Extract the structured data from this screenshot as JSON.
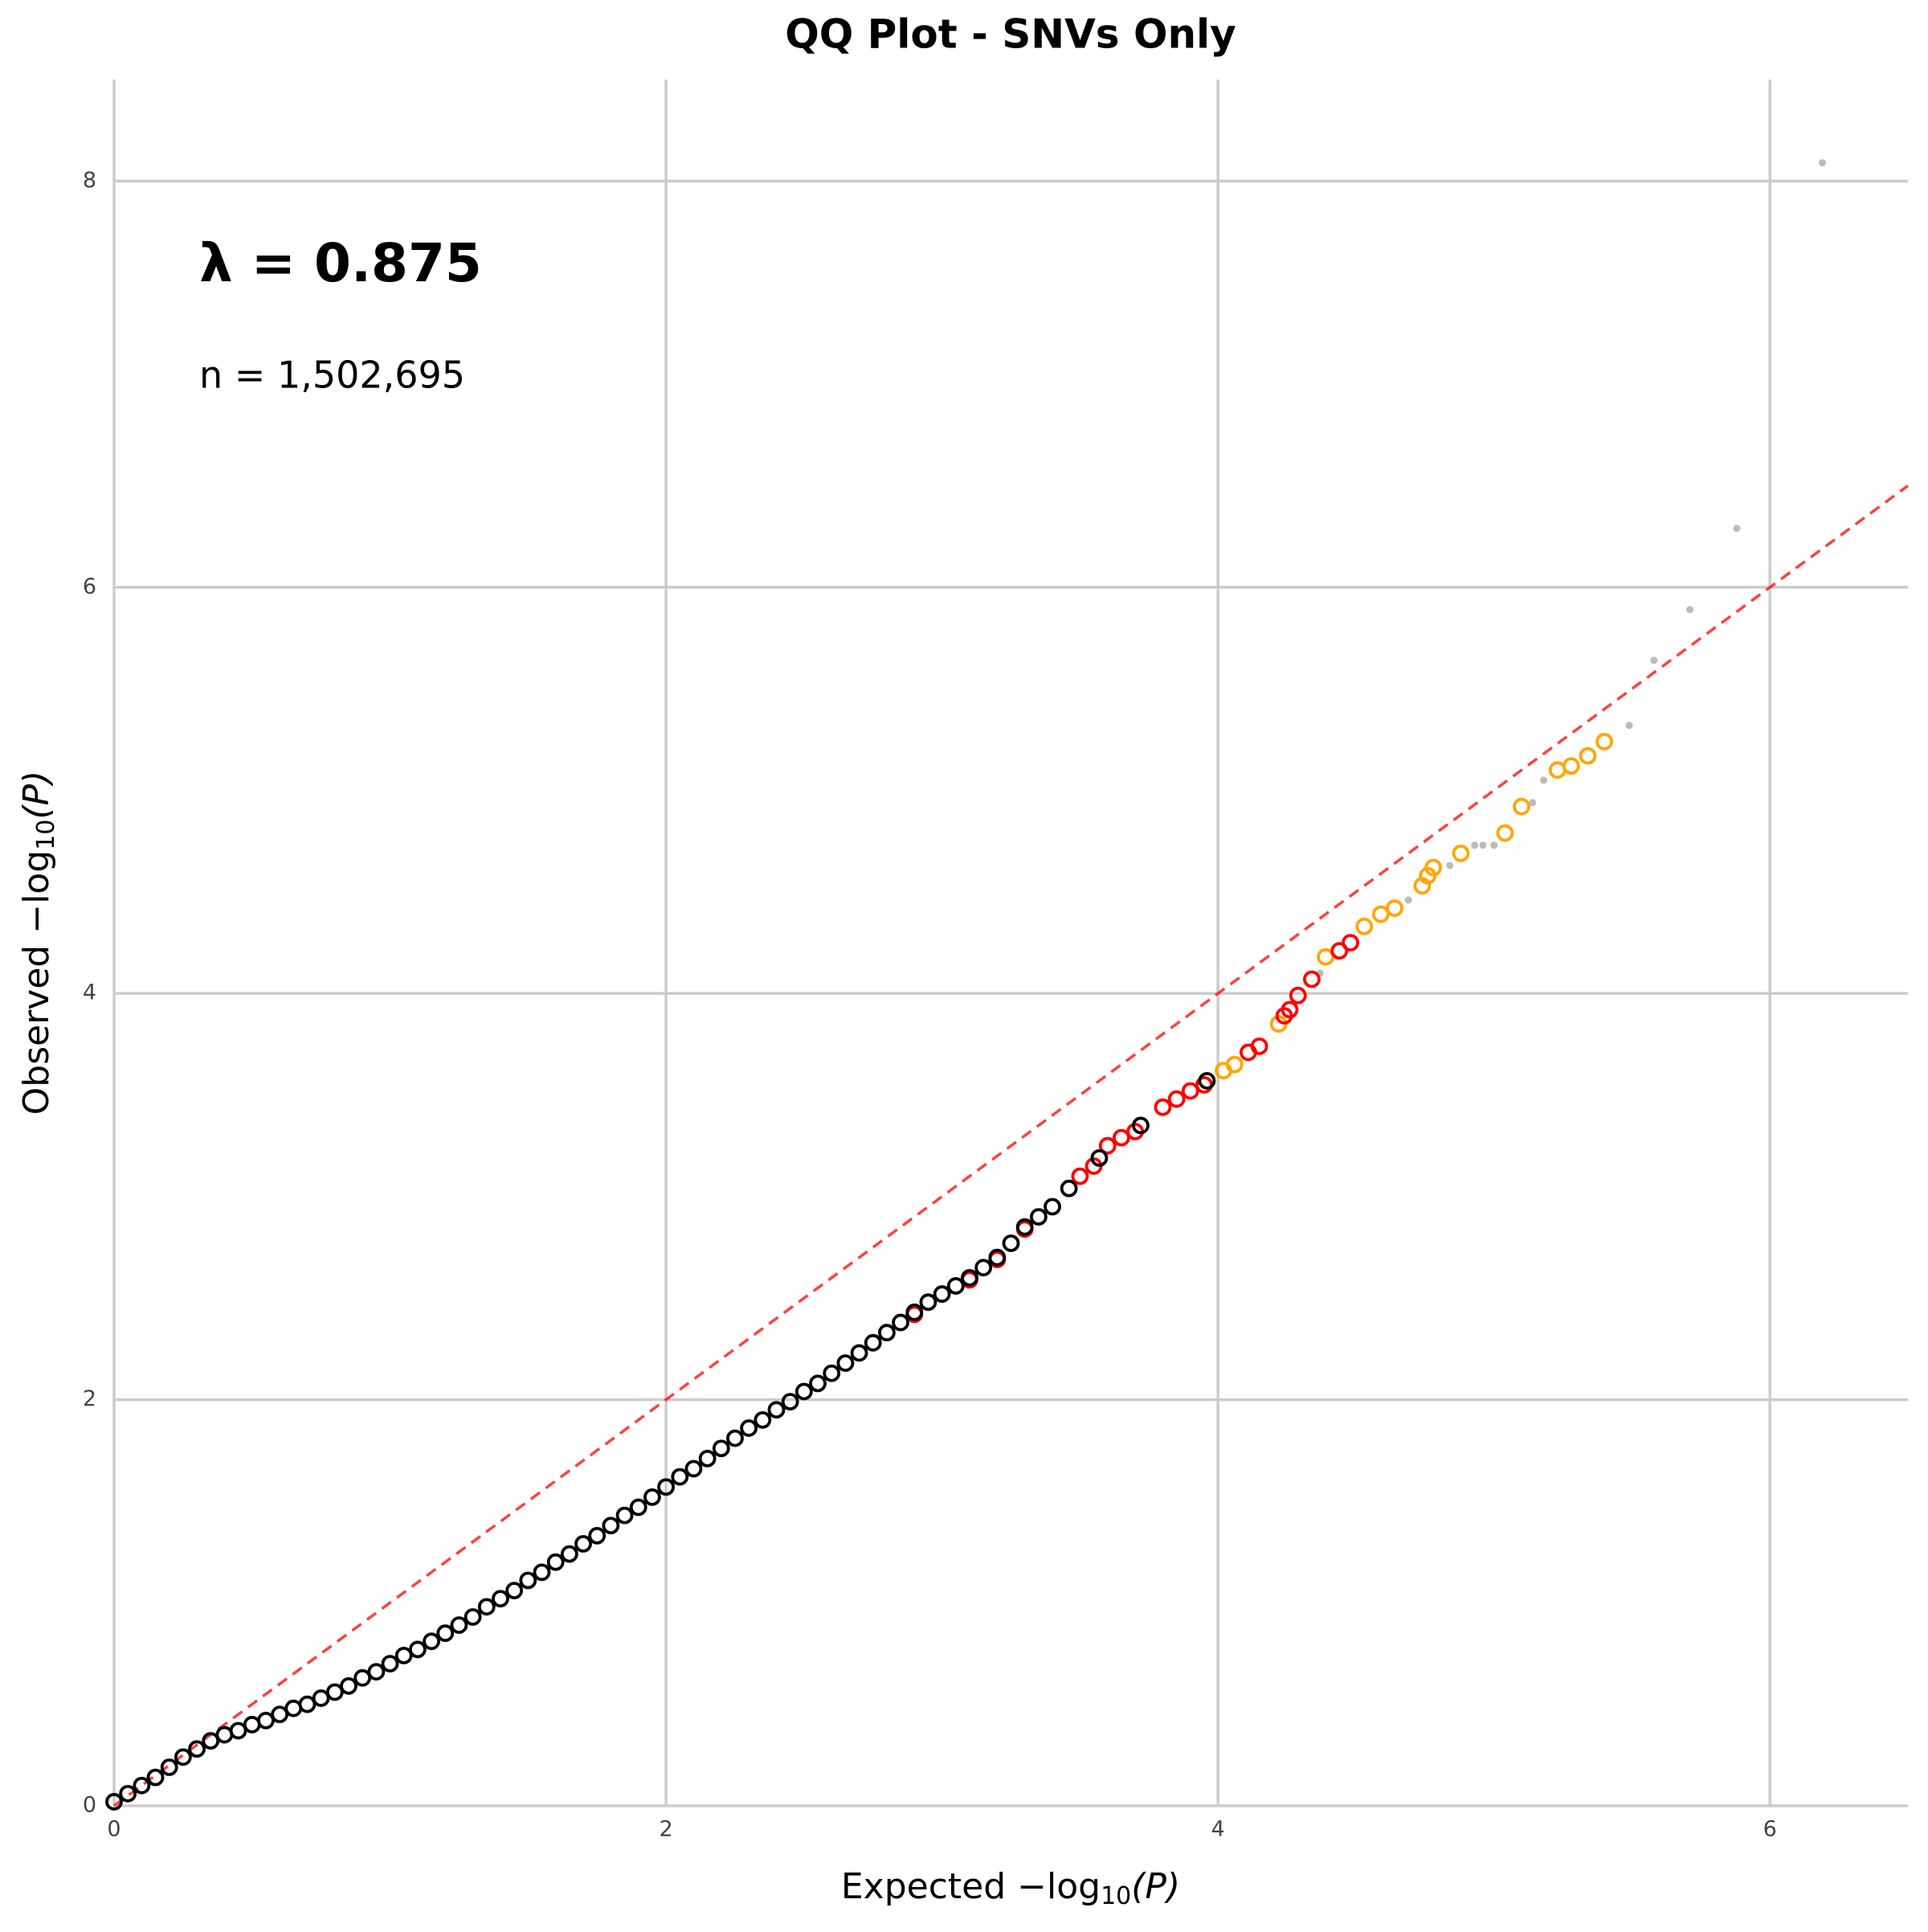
{
  "chart_data": {
    "type": "scatter",
    "title": "QQ Plot - SNVs Only",
    "x_label": {
      "prefix": "Expected −log",
      "subscript": "10",
      "suffix": "(P)"
    },
    "y_label": {
      "prefix": "Observed −log",
      "subscript": "10",
      "suffix": "(P)"
    },
    "annotations": [
      "λ = 0.875",
      "n = 1,502,695"
    ],
    "xlim": [
      0,
      6.5
    ],
    "ylim": [
      0,
      8.5
    ],
    "xticks": [
      0,
      2,
      4,
      6
    ],
    "yticks": [
      0,
      2,
      4,
      6,
      8
    ],
    "grid": true,
    "reference_line": {
      "color": "#ff0000",
      "dashed": true
    },
    "series": [
      {
        "color": "#aaaaaa",
        "marker": "dot",
        "x": [
          4.37,
          4.69,
          4.84,
          4.93,
          4.96,
          5.0,
          5.14,
          5.18,
          5.49,
          5.58,
          5.71,
          5.88,
          6.19
        ],
        "values": [
          4.1,
          4.46,
          4.63,
          4.73,
          4.73,
          4.73,
          4.94,
          5.05,
          5.32,
          5.64,
          5.89,
          6.29,
          8.09
        ]
      },
      {
        "color": "#ffa500",
        "marker": "circle",
        "x": [
          4.02,
          4.06,
          4.22,
          4.39,
          4.53,
          4.59,
          4.64,
          4.74,
          4.76,
          4.78,
          4.88,
          5.04,
          5.1,
          5.23,
          5.28,
          5.34,
          5.4
        ],
        "values": [
          3.62,
          3.65,
          3.85,
          4.18,
          4.33,
          4.39,
          4.42,
          4.53,
          4.58,
          4.62,
          4.69,
          4.79,
          4.92,
          5.1,
          5.12,
          5.17,
          5.24
        ]
      },
      {
        "color": "#ff0000",
        "marker": "circle",
        "x": [
          2.9,
          3.1,
          3.2,
          3.3,
          3.5,
          3.55,
          3.6,
          3.65,
          3.7,
          3.8,
          3.85,
          3.9,
          3.95,
          4.11,
          4.15,
          4.24,
          4.26,
          4.29,
          4.34,
          4.44,
          4.48
        ],
        "values": [
          2.42,
          2.59,
          2.69,
          2.84,
          3.1,
          3.15,
          3.25,
          3.29,
          3.32,
          3.44,
          3.48,
          3.52,
          3.55,
          3.71,
          3.74,
          3.89,
          3.92,
          3.99,
          4.07,
          4.21,
          4.25
        ]
      },
      {
        "color": "#000000",
        "marker": "circle",
        "x": [
          0,
          0.05,
          0.1,
          0.15,
          0.2,
          0.25,
          0.3,
          0.35,
          0.4,
          0.45,
          0.5,
          0.55,
          0.6,
          0.65,
          0.7,
          0.75,
          0.8,
          0.85,
          0.9,
          0.95,
          1.0,
          1.05,
          1.1,
          1.15,
          1.2,
          1.25,
          1.3,
          1.35,
          1.4,
          1.45,
          1.5,
          1.55,
          1.6,
          1.65,
          1.7,
          1.75,
          1.8,
          1.85,
          1.9,
          1.95,
          2.0,
          2.05,
          2.1,
          2.15,
          2.2,
          2.25,
          2.3,
          2.35,
          2.4,
          2.45,
          2.5,
          2.55,
          2.6,
          2.65,
          2.7,
          2.75,
          2.8,
          2.85,
          2.9,
          2.95,
          3.0,
          3.05,
          3.1,
          3.15,
          3.2,
          3.25,
          3.3,
          3.35,
          3.4,
          3.46,
          3.57,
          3.72,
          3.96
        ],
        "values": [
          0.02,
          0.06,
          0.1,
          0.14,
          0.19,
          0.24,
          0.28,
          0.32,
          0.35,
          0.37,
          0.4,
          0.42,
          0.45,
          0.48,
          0.5,
          0.53,
          0.56,
          0.59,
          0.63,
          0.66,
          0.7,
          0.74,
          0.77,
          0.81,
          0.85,
          0.89,
          0.93,
          0.98,
          1.02,
          1.06,
          1.11,
          1.15,
          1.2,
          1.24,
          1.29,
          1.33,
          1.38,
          1.43,
          1.47,
          1.52,
          1.57,
          1.62,
          1.66,
          1.71,
          1.76,
          1.81,
          1.86,
          1.9,
          1.95,
          1.99,
          2.04,
          2.08,
          2.13,
          2.18,
          2.23,
          2.28,
          2.33,
          2.38,
          2.43,
          2.48,
          2.52,
          2.56,
          2.6,
          2.65,
          2.7,
          2.77,
          2.85,
          2.9,
          2.95,
          3.04,
          3.19,
          3.35,
          3.57
        ]
      }
    ]
  }
}
